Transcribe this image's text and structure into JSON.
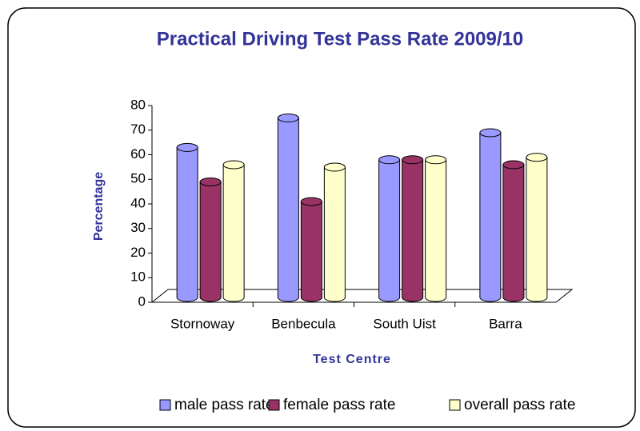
{
  "chart_data": {
    "type": "bar",
    "title": "Practical Driving Test Pass Rate 2009/10",
    "x_label": "Test Centre",
    "y_label": "Percentage",
    "categories": [
      "Stornoway",
      "Benbecula",
      "South Uist",
      "Barra"
    ],
    "series": [
      {
        "name": "male pass rate",
        "color": "#9999ff",
        "values": [
          61,
          73,
          56,
          67
        ]
      },
      {
        "name": "female pass rate",
        "color": "#993366",
        "values": [
          47,
          39,
          56,
          54
        ]
      },
      {
        "name": "overall pass rate",
        "color": "#ffffcc",
        "values": [
          54,
          53,
          56,
          57
        ]
      }
    ],
    "ylim": [
      0,
      80
    ],
    "yticks": [
      0,
      10,
      20,
      30,
      40,
      50,
      60,
      70,
      80
    ],
    "legend": "bottom"
  }
}
